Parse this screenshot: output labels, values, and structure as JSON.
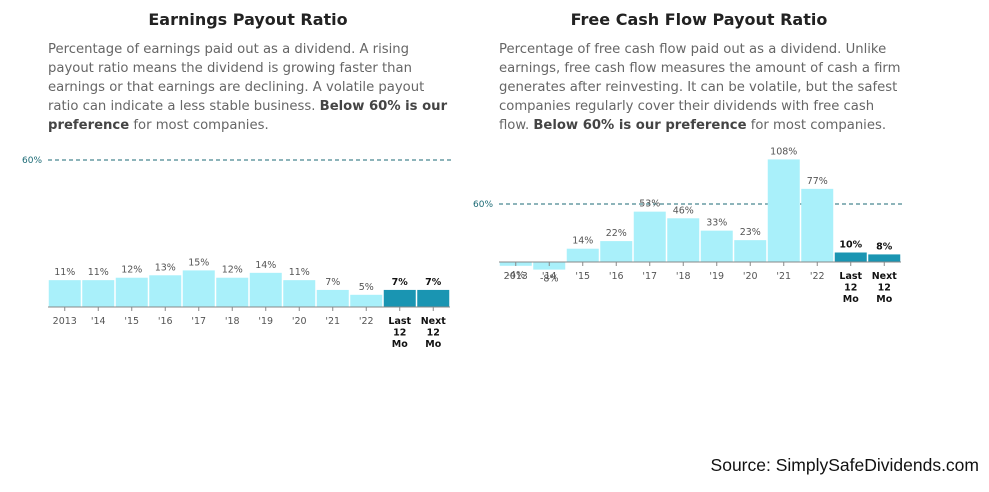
{
  "colors": {
    "bar": "#a9f0fa",
    "bar_highlight": "#1a95b2",
    "reference_line": "#1b6a75",
    "axis": "#888888",
    "text": "#555555"
  },
  "charts": [
    {
      "title": "Earnings Payout Ratio",
      "description": {
        "text": "Percentage of earnings paid out as a dividend. A rising payout ratio means the dividend is growing faster than earnings or that earnings are declining. A volatile payout ratio can indicate a less stable business. ",
        "emphasis": "Below 60% is our preference",
        "tail": " for most companies."
      }
    },
    {
      "title": "Free Cash Flow Payout Ratio",
      "description": {
        "text": "Percentage of free cash flow paid out as a dividend. Unlike earnings, free cash flow measures the amount of cash a firm generates after reinvesting. It can be volatile, but the safest companies regularly cover their dividends with free cash flow. ",
        "emphasis": "Below 60% is our preference",
        "tail": " for most companies."
      }
    }
  ],
  "chart_data": [
    {
      "type": "bar",
      "title": "Earnings Payout Ratio",
      "categories": [
        "2013",
        "'14",
        "'15",
        "'16",
        "'17",
        "'18",
        "'19",
        "'20",
        "'21",
        "'22",
        "Last 12 Mo",
        "Next 12 Mo"
      ],
      "values": [
        11,
        11,
        12,
        13,
        15,
        12,
        14,
        11,
        7,
        5,
        7,
        7
      ],
      "value_labels": [
        "11%",
        "11%",
        "12%",
        "13%",
        "15%",
        "12%",
        "14%",
        "11%",
        "7%",
        "5%",
        "7%",
        "7%"
      ],
      "highlighted": [
        false,
        false,
        false,
        false,
        false,
        false,
        false,
        false,
        false,
        false,
        true,
        true
      ],
      "reference_line": {
        "value": 60,
        "label": "60%"
      },
      "ylim": [
        0,
        60
      ],
      "grid": false,
      "legend": "none"
    },
    {
      "type": "bar",
      "title": "Free Cash Flow Payout Ratio",
      "categories": [
        "2013",
        "'14",
        "'15",
        "'16",
        "'17",
        "'18",
        "'19",
        "'20",
        "'21",
        "'22",
        "Last 12 Mo",
        "Next 12 Mo"
      ],
      "values": [
        -4,
        -8,
        14,
        22,
        53,
        46,
        33,
        23,
        108,
        77,
        10,
        8
      ],
      "value_labels": [
        "-4%",
        "-8%",
        "14%",
        "22%",
        "53%",
        "46%",
        "33%",
        "23%",
        "108%",
        "77%",
        "10%",
        "8%"
      ],
      "highlighted": [
        false,
        false,
        false,
        false,
        false,
        false,
        false,
        false,
        false,
        false,
        true,
        true
      ],
      "reference_line": {
        "value": 60,
        "label": "60%"
      },
      "ylim": [
        -8,
        108
      ],
      "grid": false,
      "legend": "none"
    }
  ],
  "source": "Source: SimplySafeDividends.com"
}
